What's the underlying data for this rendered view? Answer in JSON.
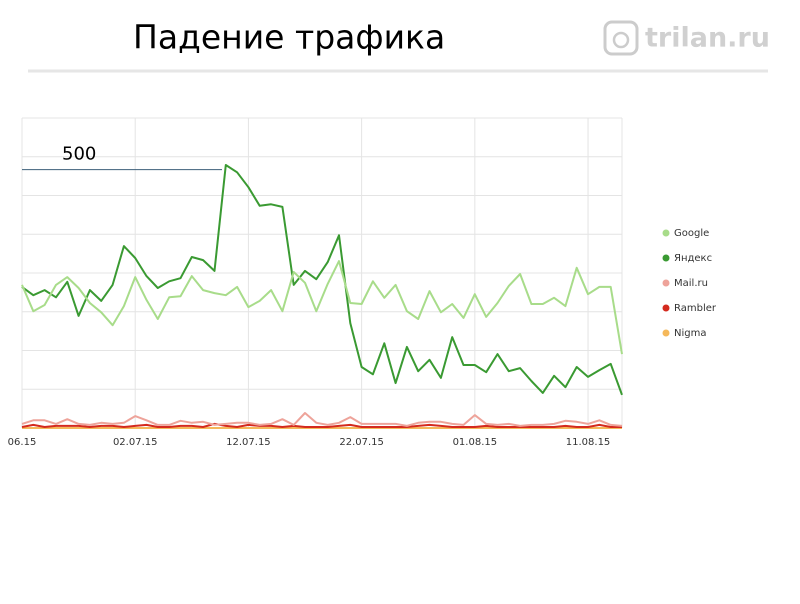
{
  "header": {
    "title": "Падение трафика",
    "logo": "trilan.ru"
  },
  "chart_data": {
    "type": "line",
    "categories": [
      "06.15",
      null,
      null,
      null,
      null,
      null,
      null,
      null,
      null,
      null,
      "02.07.15",
      null,
      null,
      null,
      null,
      null,
      null,
      null,
      null,
      null,
      "12.07.15",
      null,
      null,
      null,
      null,
      null,
      null,
      null,
      null,
      null,
      "22.07.15",
      null,
      null,
      null,
      null,
      null,
      null,
      null,
      null,
      null,
      "01.08.15",
      null,
      null,
      null,
      null,
      null,
      null,
      null,
      null,
      null,
      "11.08.15",
      null,
      null,
      null
    ],
    "series": [
      {
        "name": "Google",
        "color": "#a8dc8a",
        "values": [
          277,
          226,
          238,
          277,
          292,
          271,
          242,
          224,
          199,
          236,
          292,
          248,
          211,
          253,
          255,
          294,
          267,
          261,
          257,
          273,
          234,
          246,
          267,
          226,
          302,
          281,
          226,
          279,
          323,
          242,
          240,
          284,
          252,
          277,
          226,
          211,
          265,
          224,
          240,
          213,
          259,
          215,
          242,
          275,
          298,
          240,
          240,
          252,
          236,
          310,
          259,
          273,
          273,
          143
        ]
      },
      {
        "name": "Яндекс",
        "color": "#3a9a32",
        "values": [
          273,
          257,
          267,
          253,
          283,
          217,
          267,
          246,
          277,
          352,
          329,
          294,
          271,
          284,
          290,
          331,
          325,
          304,
          509,
          495,
          466,
          430,
          433,
          428,
          277,
          304,
          288,
          321,
          373,
          203,
          118,
          104,
          164,
          87,
          157,
          110,
          132,
          97,
          176,
          122,
          122,
          108,
          143,
          110,
          116,
          91,
          68,
          101,
          79,
          118,
          99,
          112,
          124,
          64
        ]
      },
      {
        "name": "Mail.ru",
        "color": "#eea39a",
        "values": [
          8,
          15,
          15,
          8,
          17,
          8,
          6,
          10,
          8,
          10,
          23,
          15,
          6,
          6,
          14,
          10,
          12,
          6,
          8,
          10,
          10,
          6,
          8,
          17,
          6,
          29,
          10,
          6,
          10,
          21,
          8,
          8,
          8,
          8,
          4,
          10,
          12,
          12,
          8,
          6,
          25,
          8,
          6,
          8,
          4,
          6,
          6,
          8,
          14,
          12,
          8,
          15,
          6,
          4
        ]
      },
      {
        "name": "Rambler",
        "color": "#d42a1e",
        "values": [
          2,
          6,
          2,
          4,
          4,
          4,
          2,
          4,
          4,
          2,
          4,
          6,
          2,
          2,
          4,
          4,
          2,
          8,
          4,
          2,
          6,
          4,
          4,
          2,
          4,
          2,
          2,
          2,
          4,
          6,
          2,
          2,
          2,
          2,
          2,
          4,
          6,
          4,
          2,
          2,
          2,
          4,
          2,
          2,
          2,
          2,
          2,
          2,
          4,
          2,
          2,
          6,
          2,
          2
        ]
      },
      {
        "name": "Nigma",
        "color": "#f5b85a",
        "values": [
          0,
          0,
          0,
          0,
          0,
          0,
          0,
          0,
          0,
          0,
          0,
          0,
          0,
          0,
          0,
          0,
          0,
          0,
          0,
          0,
          0,
          0,
          0,
          0,
          0,
          0,
          0,
          0,
          0,
          0,
          0,
          0,
          0,
          0,
          0,
          0,
          0,
          0,
          0,
          0,
          0,
          0,
          0,
          0,
          0,
          0,
          0,
          0,
          0,
          0,
          0,
          0,
          0,
          0
        ]
      }
    ],
    "ylim": [
      0,
      600
    ],
    "ygrid": [
      0,
      75,
      150,
      225,
      300,
      375,
      450,
      525,
      600
    ],
    "reference_line": 500,
    "grid": true,
    "legend": "right"
  }
}
